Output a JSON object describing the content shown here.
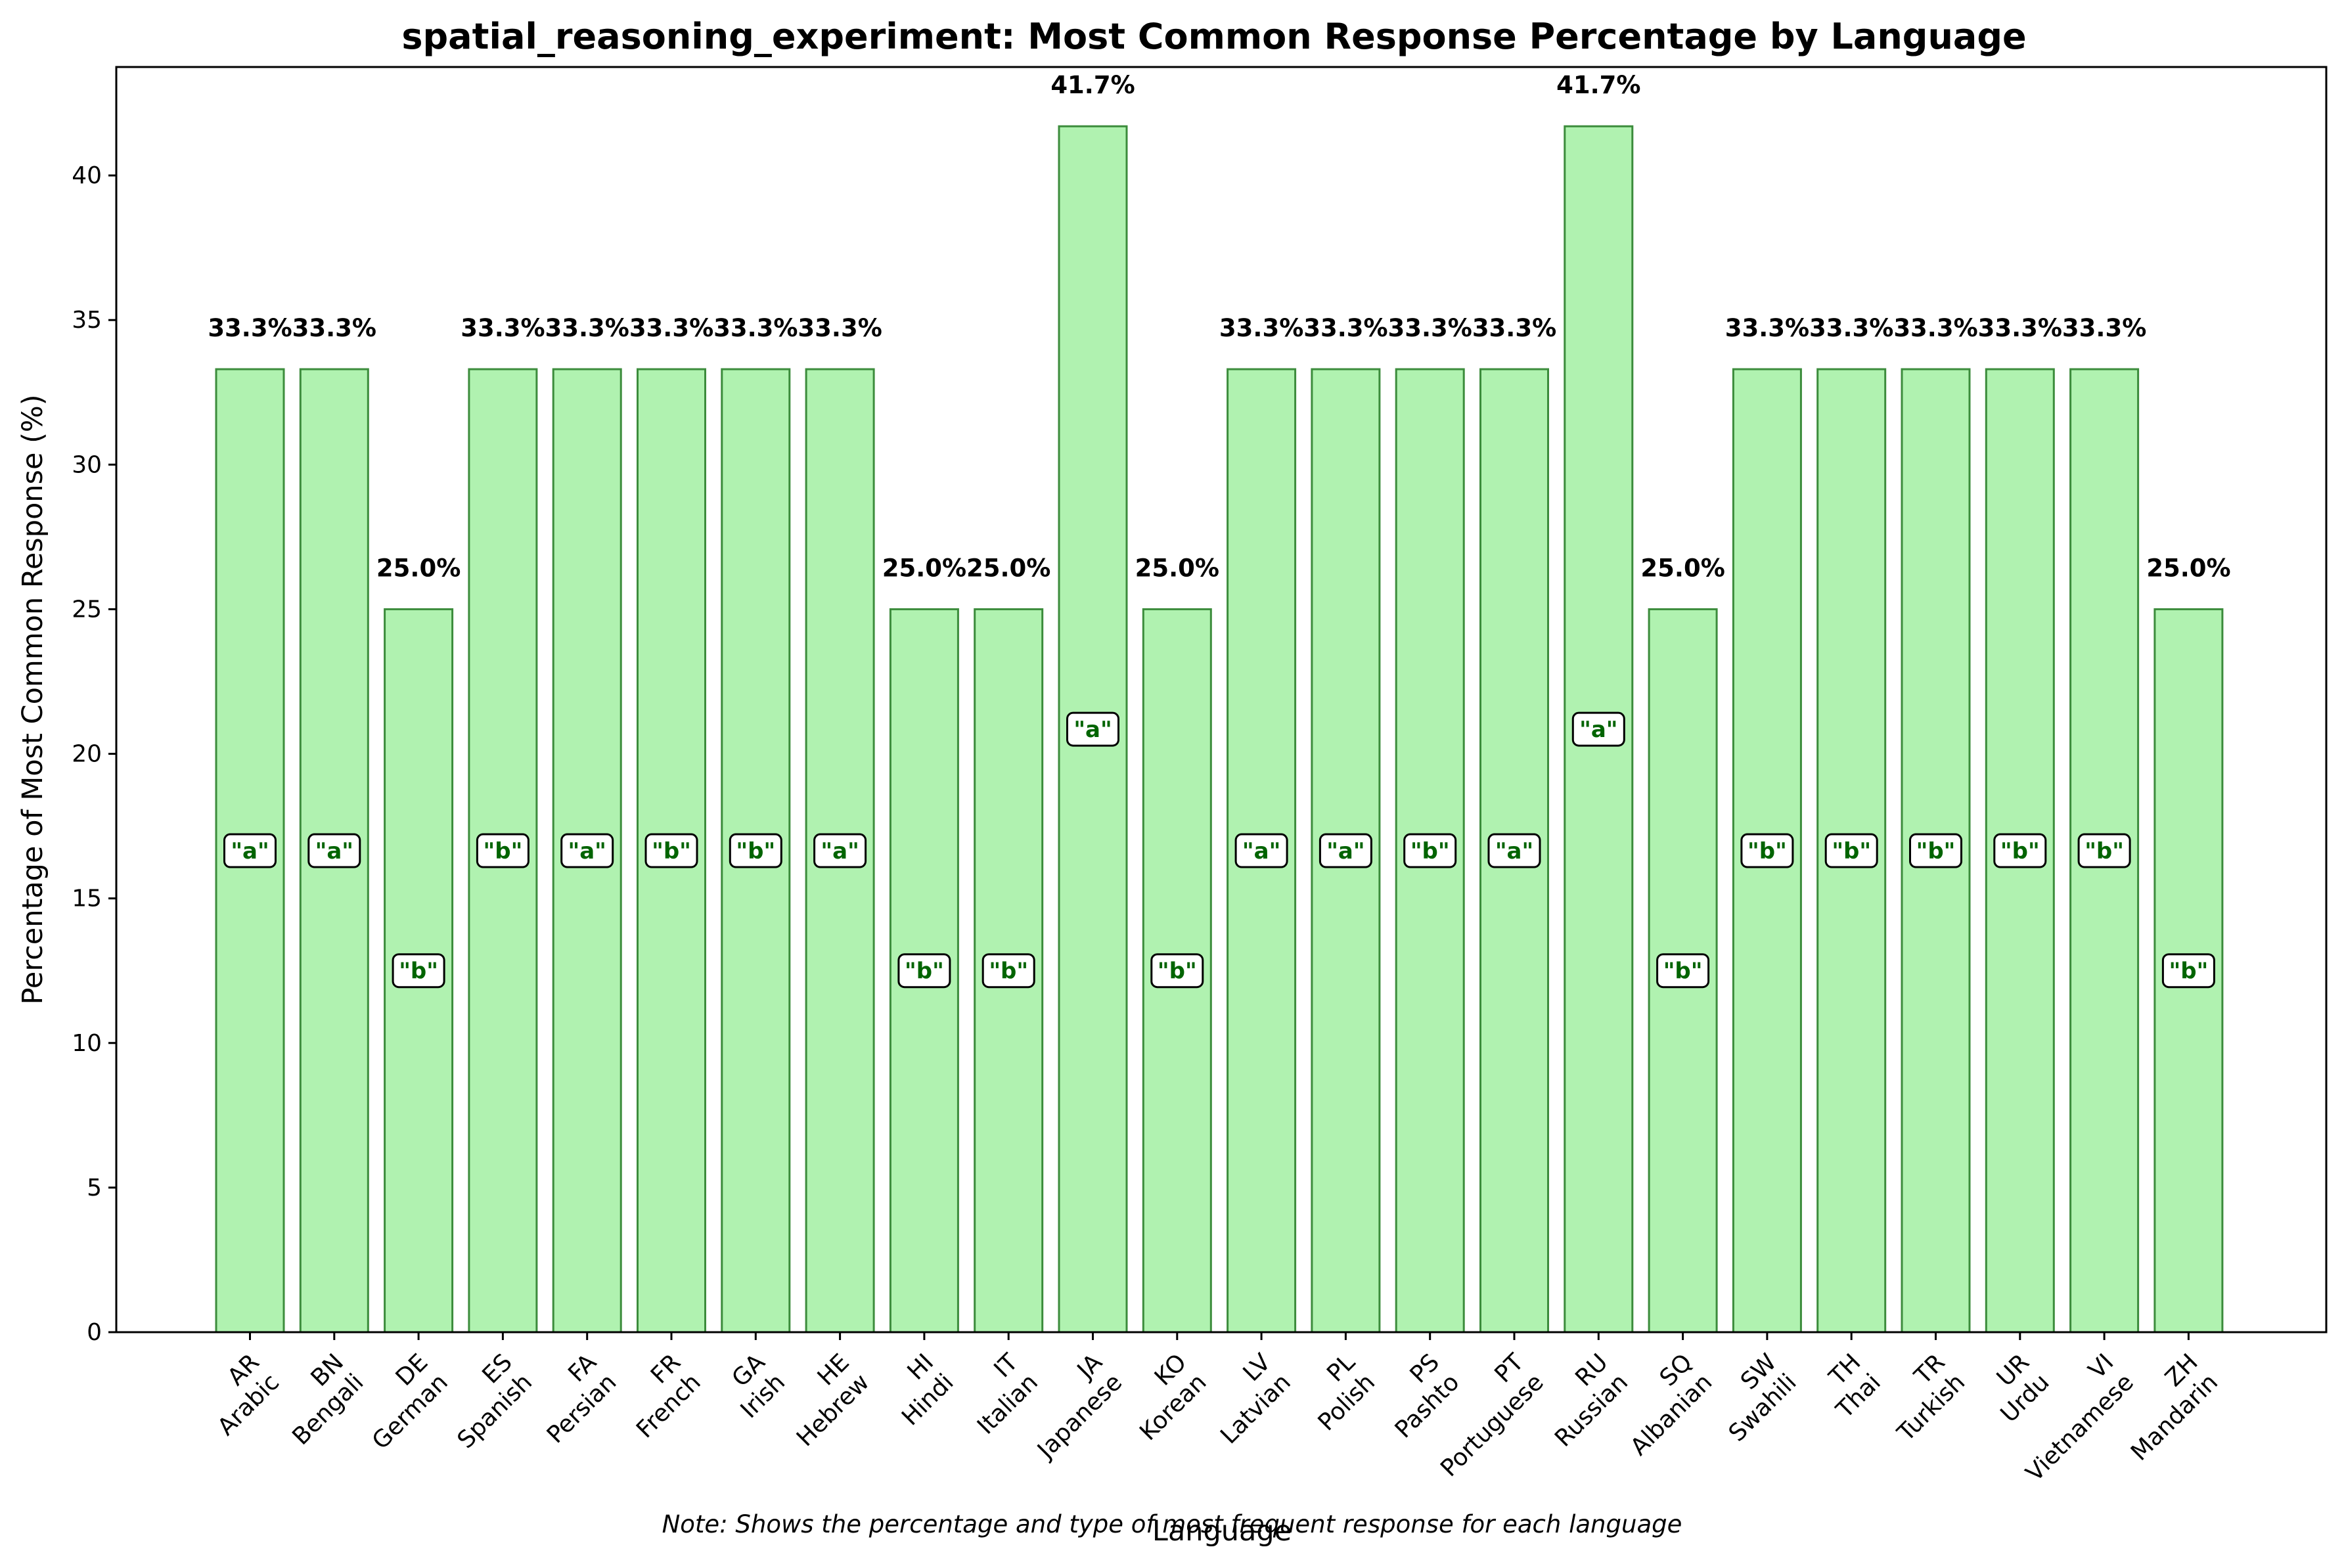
{
  "chart_data": {
    "type": "bar",
    "title": "spatial_reasoning_experiment: Most Common Response Percentage by Language",
    "xlabel": "Language",
    "ylabel": "Percentage of Most Common Response (%)",
    "ylim": [
      0,
      43.75
    ],
    "yticks": [
      0,
      5,
      10,
      15,
      20,
      25,
      30,
      35,
      40
    ],
    "grid": false,
    "note": "Note: Shows the percentage and type of most frequent response for each language",
    "colors": {
      "bar_fill": "#b0f2b0",
      "bar_edge": "#3c8c3c",
      "response_text": "#006400"
    },
    "categories": [
      {
        "code": "AR",
        "name": "Arabic"
      },
      {
        "code": "BN",
        "name": "Bengali"
      },
      {
        "code": "DE",
        "name": "German"
      },
      {
        "code": "ES",
        "name": "Spanish"
      },
      {
        "code": "FA",
        "name": "Persian"
      },
      {
        "code": "FR",
        "name": "French"
      },
      {
        "code": "GA",
        "name": "Irish"
      },
      {
        "code": "HE",
        "name": "Hebrew"
      },
      {
        "code": "HI",
        "name": "Hindi"
      },
      {
        "code": "IT",
        "name": "Italian"
      },
      {
        "code": "JA",
        "name": "Japanese"
      },
      {
        "code": "KO",
        "name": "Korean"
      },
      {
        "code": "LV",
        "name": "Latvian"
      },
      {
        "code": "PL",
        "name": "Polish"
      },
      {
        "code": "PS",
        "name": "Pashto"
      },
      {
        "code": "PT",
        "name": "Portuguese"
      },
      {
        "code": "RU",
        "name": "Russian"
      },
      {
        "code": "SQ",
        "name": "Albanian"
      },
      {
        "code": "SW",
        "name": "Swahili"
      },
      {
        "code": "TH",
        "name": "Thai"
      },
      {
        "code": "TR",
        "name": "Turkish"
      },
      {
        "code": "UR",
        "name": "Urdu"
      },
      {
        "code": "VI",
        "name": "Vietnamese"
      },
      {
        "code": "ZH",
        "name": "Mandarin"
      }
    ],
    "values": [
      33.3,
      33.3,
      25.0,
      33.3,
      33.3,
      33.3,
      33.3,
      33.3,
      25.0,
      25.0,
      41.7,
      25.0,
      33.3,
      33.3,
      33.3,
      33.3,
      41.7,
      25.0,
      33.3,
      33.3,
      33.3,
      33.3,
      33.3,
      25.0
    ],
    "value_labels": [
      "33.3%",
      "33.3%",
      "25.0%",
      "33.3%",
      "33.3%",
      "33.3%",
      "33.3%",
      "33.3%",
      "25.0%",
      "25.0%",
      "41.7%",
      "25.0%",
      "33.3%",
      "33.3%",
      "33.3%",
      "33.3%",
      "41.7%",
      "25.0%",
      "33.3%",
      "33.3%",
      "33.3%",
      "33.3%",
      "33.3%",
      "25.0%"
    ],
    "responses": [
      "\"a\"",
      "\"a\"",
      "\"b\"",
      "\"b\"",
      "\"a\"",
      "\"b\"",
      "\"b\"",
      "\"a\"",
      "\"b\"",
      "\"b\"",
      "\"a\"",
      "\"b\"",
      "\"a\"",
      "\"a\"",
      "\"b\"",
      "\"a\"",
      "\"a\"",
      "\"b\"",
      "\"b\"",
      "\"b\"",
      "\"b\"",
      "\"b\"",
      "\"b\"",
      "\"b\""
    ]
  }
}
